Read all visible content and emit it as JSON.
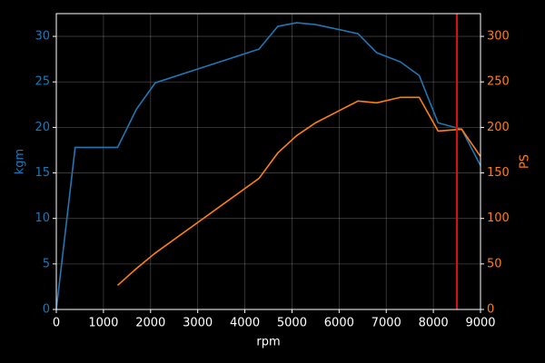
{
  "chart_data": {
    "type": "line",
    "xlabel": "rpm",
    "ylabel": "kgm",
    "y2label": "PS",
    "x": [
      0,
      400,
      1300,
      1700,
      2100,
      4300,
      4700,
      5100,
      5500,
      6400,
      6800,
      7300,
      7700,
      8100,
      8600,
      9000
    ],
    "series": [
      {
        "name": "kgm",
        "color": "#1f77b4",
        "values": [
          0,
          17.8,
          17.8,
          22,
          24.9,
          28.6,
          31.1,
          31.5,
          31.3,
          30.3,
          28.2,
          27.2,
          25.7,
          20.5,
          19.8,
          15.8
        ]
      },
      {
        "name": "PS",
        "color": "#ff7f0e",
        "axis": "y2",
        "values": [
          0,
          null,
          26.5,
          45,
          62,
          144,
          172,
          191,
          205,
          229,
          227,
          233,
          233,
          196,
          198,
          168
        ]
      }
    ],
    "xlim": [
      0,
      9000
    ],
    "xticks": [
      0,
      1000,
      2000,
      3000,
      4000,
      5000,
      6000,
      7000,
      8000,
      9000
    ],
    "ylim": [
      0,
      32.5
    ],
    "yticks": [
      0,
      5,
      10,
      15,
      20,
      25,
      30
    ],
    "y2lim": [
      0,
      325
    ],
    "y2ticks": [
      0,
      50,
      100,
      150,
      200,
      250,
      300
    ],
    "vline": {
      "x": 8500,
      "color": "#e01010"
    },
    "grid": true
  }
}
